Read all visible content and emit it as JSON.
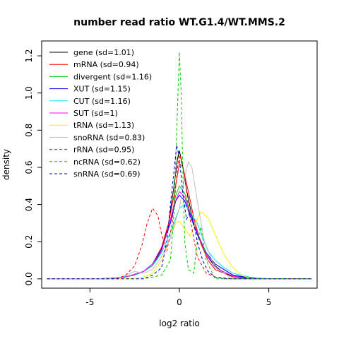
{
  "chart_data": {
    "type": "line",
    "title": "number read ratio WT.G1.4/WT.MMS.2",
    "xlabel": "log2 ratio",
    "ylabel": "density",
    "xlim": [
      -7.7,
      7.7
    ],
    "ylim": [
      -0.05,
      1.28
    ],
    "xticks": [
      {
        "v": -5,
        "label": "-5"
      },
      {
        "v": 0,
        "label": "0"
      },
      {
        "v": 5,
        "label": "5"
      }
    ],
    "yticks": [
      {
        "v": 0,
        "label": "0.0"
      },
      {
        "v": 0.2,
        "label": "0.2"
      },
      {
        "v": 0.4,
        "label": "0.4"
      },
      {
        "v": 0.6,
        "label": "0.6"
      },
      {
        "v": 0.8,
        "label": "0.8"
      },
      {
        "v": 1.0,
        "label": "1.0"
      },
      {
        "v": 1.2,
        "label": "1.2"
      }
    ],
    "grid": false,
    "legend_position": "top-left",
    "series": [
      {
        "name": "gene (sd=1.01)",
        "color": "#000000",
        "dash": "solid",
        "x": [
          -4.5,
          -3.5,
          -2.5,
          -2.0,
          -1.5,
          -1.0,
          -0.6,
          -0.3,
          -0.1,
          0.0,
          0.2,
          0.4,
          0.7,
          1.0,
          1.5,
          2.0,
          2.5,
          3.0,
          4.0,
          5.0
        ],
        "y": [
          0.0,
          0.005,
          0.02,
          0.04,
          0.07,
          0.15,
          0.3,
          0.5,
          0.65,
          0.69,
          0.6,
          0.48,
          0.34,
          0.24,
          0.13,
          0.07,
          0.03,
          0.015,
          0.003,
          0.0
        ]
      },
      {
        "name": "mRNA (sd=0.94)",
        "color": "#ff0000",
        "dash": "solid",
        "x": [
          -4.0,
          -3.0,
          -2.0,
          -1.5,
          -1.0,
          -0.6,
          -0.3,
          0.0,
          0.2,
          0.5,
          0.8,
          1.2,
          1.6,
          2.0,
          3.0,
          4.0
        ],
        "y": [
          0.0,
          0.01,
          0.04,
          0.08,
          0.17,
          0.3,
          0.45,
          0.62,
          0.6,
          0.47,
          0.33,
          0.19,
          0.1,
          0.05,
          0.01,
          0.0
        ]
      },
      {
        "name": "divergent (sd=1.16)",
        "color": "#00cd00",
        "dash": "solid",
        "x": [
          -4.5,
          -3.5,
          -2.5,
          -2.0,
          -1.5,
          -1.0,
          -0.5,
          -0.2,
          0.0,
          0.3,
          0.6,
          1.0,
          1.5,
          2.0,
          3.0,
          4.0,
          5.0
        ],
        "y": [
          0.0,
          0.005,
          0.02,
          0.04,
          0.08,
          0.16,
          0.3,
          0.45,
          0.5,
          0.46,
          0.36,
          0.25,
          0.14,
          0.08,
          0.02,
          0.005,
          0.0
        ]
      },
      {
        "name": "XUT (sd=1.15)",
        "color": "#0000ff",
        "dash": "solid",
        "x": [
          -4.5,
          -3.5,
          -2.5,
          -2.0,
          -1.5,
          -1.0,
          -0.5,
          -0.2,
          0.0,
          0.3,
          0.6,
          1.0,
          1.5,
          2.0,
          3.0,
          4.0,
          5.0
        ],
        "y": [
          0.0,
          0.005,
          0.02,
          0.04,
          0.08,
          0.16,
          0.3,
          0.42,
          0.45,
          0.42,
          0.34,
          0.24,
          0.14,
          0.08,
          0.02,
          0.005,
          0.0
        ]
      },
      {
        "name": "CUT (sd=1.16)",
        "color": "#00e5ee",
        "dash": "solid",
        "x": [
          -4.5,
          -3.5,
          -2.5,
          -2.0,
          -1.5,
          -1.0,
          -0.5,
          0.0,
          0.3,
          0.6,
          1.0,
          1.3,
          1.6,
          2.0,
          2.5,
          3.0,
          4.0,
          5.0
        ],
        "y": [
          0.0,
          0.005,
          0.02,
          0.04,
          0.07,
          0.14,
          0.25,
          0.38,
          0.4,
          0.36,
          0.3,
          0.22,
          0.15,
          0.1,
          0.06,
          0.03,
          0.008,
          0.0
        ]
      },
      {
        "name": "SUT (sd=1)",
        "color": "#ff00ff",
        "dash": "solid",
        "x": [
          -4.0,
          -3.0,
          -2.0,
          -1.5,
          -1.0,
          -0.6,
          -0.3,
          0.0,
          0.3,
          0.6,
          1.0,
          1.5,
          2.0,
          3.0,
          4.0
        ],
        "y": [
          0.0,
          0.01,
          0.04,
          0.08,
          0.15,
          0.28,
          0.4,
          0.47,
          0.44,
          0.35,
          0.25,
          0.13,
          0.06,
          0.015,
          0.0
        ]
      },
      {
        "name": "tRNA (sd=1.13)",
        "color": "#ffee00",
        "dash": "solid",
        "x": [
          -3.0,
          -2.0,
          -1.5,
          -1.0,
          -0.5,
          -0.2,
          0.0,
          0.3,
          0.6,
          0.9,
          1.2,
          1.6,
          2.0,
          2.5,
          3.0,
          3.5,
          4.0
        ],
        "y": [
          0.0,
          0.01,
          0.03,
          0.1,
          0.22,
          0.3,
          0.31,
          0.27,
          0.23,
          0.3,
          0.36,
          0.33,
          0.24,
          0.13,
          0.06,
          0.02,
          0.0
        ]
      },
      {
        "name": "snoRNA (sd=0.83)",
        "color": "#bebebe",
        "dash": "solid",
        "x": [
          -3.5,
          -3.0,
          -2.5,
          -2.0,
          -1.5,
          -1.0,
          -0.5,
          0.0,
          0.3,
          0.5,
          0.7,
          1.0,
          1.4,
          2.0,
          3.0
        ],
        "y": [
          0.0,
          0.02,
          0.04,
          0.03,
          0.05,
          0.12,
          0.22,
          0.38,
          0.55,
          0.63,
          0.6,
          0.42,
          0.2,
          0.06,
          0.0
        ]
      },
      {
        "name": "rRNA (sd=0.95)",
        "color": "#ff0000",
        "dash": "dashed",
        "x": [
          -3.5,
          -3.0,
          -2.5,
          -2.1,
          -1.8,
          -1.5,
          -1.2,
          -1.0,
          -0.7,
          -0.4,
          -0.1,
          0.0,
          0.3,
          0.6,
          1.0,
          1.5,
          2.0,
          3.0
        ],
        "y": [
          0.0,
          0.02,
          0.07,
          0.18,
          0.3,
          0.38,
          0.34,
          0.24,
          0.15,
          0.3,
          0.6,
          0.68,
          0.55,
          0.32,
          0.12,
          0.03,
          0.01,
          0.0
        ]
      },
      {
        "name": "ncRNA (sd=0.62)",
        "color": "#00cd00",
        "dash": "dashed",
        "x": [
          -2.0,
          -1.0,
          -0.5,
          -0.3,
          -0.15,
          0.0,
          0.1,
          0.2,
          0.3,
          0.5,
          0.8,
          1.0,
          1.2,
          1.5,
          2.0
        ],
        "y": [
          0.0,
          0.02,
          0.1,
          0.35,
          0.8,
          1.22,
          1.0,
          0.55,
          0.2,
          0.05,
          0.03,
          0.2,
          0.28,
          0.1,
          0.0
        ]
      },
      {
        "name": "snRNA (sd=0.69)",
        "color": "#0000cd",
        "dash": "dashed",
        "x": [
          -2.0,
          -1.5,
          -1.0,
          -0.7,
          -0.5,
          -0.3,
          -0.15,
          0.0,
          0.2,
          0.4,
          0.6,
          0.8,
          1.0,
          1.3,
          1.6,
          2.0,
          2.5
        ],
        "y": [
          0.0,
          0.02,
          0.06,
          0.2,
          0.4,
          0.58,
          0.72,
          0.65,
          0.45,
          0.32,
          0.36,
          0.3,
          0.2,
          0.1,
          0.04,
          0.01,
          0.0
        ]
      }
    ]
  }
}
